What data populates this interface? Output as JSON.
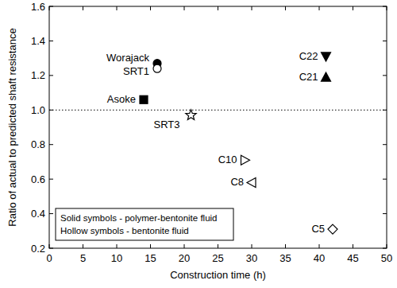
{
  "chart_data": {
    "type": "scatter",
    "x_label": "Construction time (h)",
    "y_label": "Ratio of actual to predicted shaft resistance",
    "xlim": [
      0,
      50
    ],
    "xticks": [
      0,
      5,
      10,
      15,
      20,
      25,
      30,
      35,
      40,
      45,
      50
    ],
    "ylim": [
      0.2,
      1.6
    ],
    "yticks": [
      0.2,
      0.4,
      0.6,
      0.8,
      {
        "value": 1,
        "label": "1.0"
      },
      1.2,
      1.4,
      1.6
    ],
    "reference_y": 1,
    "grid": false,
    "color": "#000000",
    "annotations": [
      "Solid symbols - polymer-bentonite fluid",
      "Hollow symbols - bentonite fluid"
    ],
    "series": [
      {
        "name": "Worajack",
        "marker": "filled-circle",
        "x": [
          16
        ],
        "values": [
          1.27
        ]
      },
      {
        "name": "SRT1",
        "marker": "open-circle",
        "x": [
          16
        ],
        "values": [
          1.24
        ]
      },
      {
        "name": "Asoke",
        "marker": "filled-square",
        "x": [
          14
        ],
        "values": [
          1.06
        ]
      },
      {
        "name": "SRT3",
        "marker": "open-star",
        "x": [
          21
        ],
        "values": [
          0.97
        ]
      },
      {
        "name": "C22",
        "marker": "filled-triangle-down",
        "x": [
          41
        ],
        "values": [
          1.31
        ]
      },
      {
        "name": "C21",
        "marker": "filled-triangle-up",
        "x": [
          41
        ],
        "values": [
          1.19
        ]
      },
      {
        "name": "C10",
        "marker": "open-triangle-right",
        "x": [
          29
        ],
        "values": [
          0.71
        ]
      },
      {
        "name": "C8",
        "marker": "open-triangle-left",
        "x": [
          30
        ],
        "values": [
          0.58
        ]
      },
      {
        "name": "C5",
        "marker": "open-diamond",
        "x": [
          42
        ],
        "values": [
          0.31
        ]
      }
    ]
  }
}
